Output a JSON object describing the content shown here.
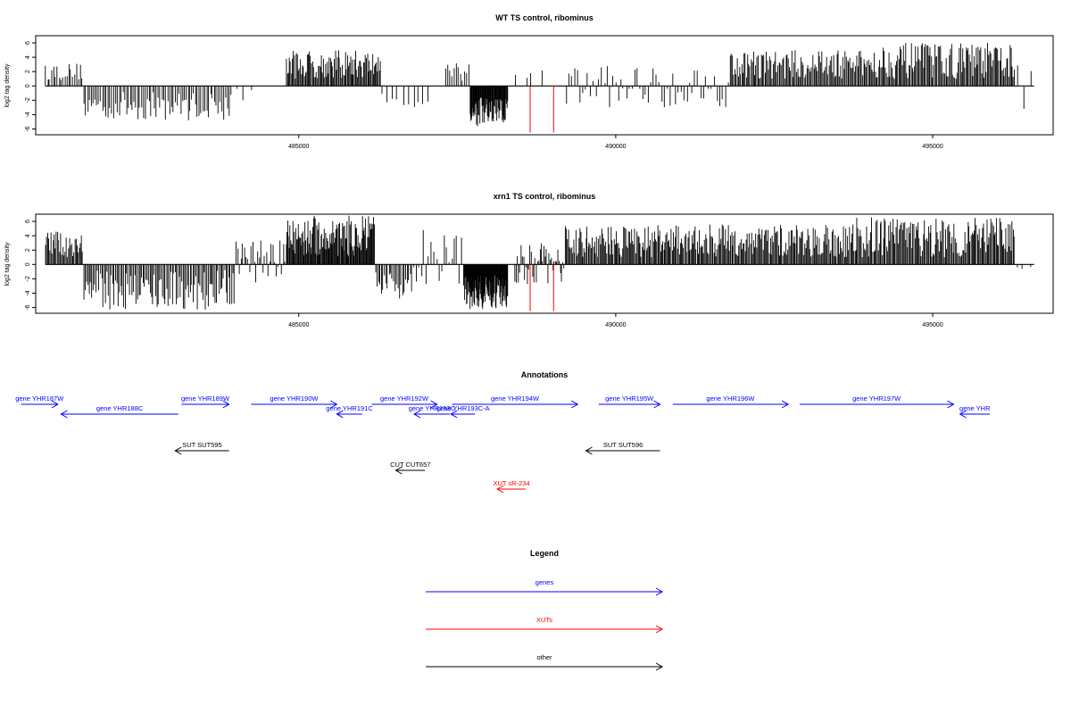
{
  "chart_data": [
    {
      "type": "bar",
      "title": "WT TS control, ribominus",
      "ylabel": "log2 tag density",
      "xlim": [
        480850,
        496900
      ],
      "ylim": [
        -6.8,
        7.0
      ],
      "yticks": [
        -6,
        -4,
        -2,
        0,
        2,
        4,
        6
      ],
      "xticks": [
        485000,
        490000,
        495000
      ],
      "grid": false,
      "series": [
        {
          "color": "#000000",
          "segments": [
            {
              "start": 481000,
              "end": 481600,
              "count": 20,
              "min": 0.8,
              "max": 3.2
            },
            {
              "start": 481600,
              "end": 483950,
              "count": 80,
              "min": -4.8,
              "max": -0.8
            },
            {
              "start": 484000,
              "end": 484300,
              "count": 3,
              "min": -3.0,
              "max": 1.0
            },
            {
              "start": 484800,
              "end": 486300,
              "count": 95,
              "min": 1.0,
              "max": 5.0
            },
            {
              "start": 486300,
              "end": 487100,
              "count": 10,
              "min": -3.0,
              "max": -1.0
            },
            {
              "start": 487300,
              "end": 487700,
              "count": 12,
              "min": 0.5,
              "max": 3.8
            },
            {
              "start": 487700,
              "end": 488300,
              "count": 70,
              "min": -5.8,
              "max": -1.5
            },
            {
              "start": 488400,
              "end": 488900,
              "count": 4,
              "min": 0.5,
              "max": 2.3
            },
            {
              "start": 489200,
              "end": 491800,
              "count": 60,
              "min": -3.0,
              "max": 3.0
            },
            {
              "start": 491800,
              "end": 494000,
              "count": 120,
              "min": 1.0,
              "max": 5.0
            },
            {
              "start": 494000,
              "end": 496300,
              "count": 130,
              "min": 1.0,
              "max": 6.0
            },
            {
              "start": 496300,
              "end": 496600,
              "count": 3,
              "min": -3.5,
              "max": 3.5
            }
          ]
        },
        {
          "color": "#ff0000",
          "bars": [
            {
              "x": 488650,
              "y": -6.5
            },
            {
              "x": 489020,
              "y": -6.5
            }
          ]
        }
      ]
    },
    {
      "type": "bar",
      "title": "xrn1 TS control, ribominus",
      "ylabel": "log2 tag density",
      "xlim": [
        480850,
        496900
      ],
      "ylim": [
        -6.8,
        7.0
      ],
      "yticks": [
        -6,
        -4,
        -2,
        0,
        2,
        4,
        6
      ],
      "xticks": [
        485000,
        490000,
        495000
      ],
      "grid": false,
      "series": [
        {
          "color": "#000000",
          "segments": [
            {
              "start": 481000,
              "end": 481600,
              "count": 35,
              "min": 1.0,
              "max": 4.6
            },
            {
              "start": 481600,
              "end": 484000,
              "count": 110,
              "min": -6.3,
              "max": -0.8
            },
            {
              "start": 484000,
              "end": 484800,
              "count": 30,
              "min": -2.5,
              "max": 3.5
            },
            {
              "start": 484800,
              "end": 486200,
              "count": 120,
              "min": 1.0,
              "max": 6.8
            },
            {
              "start": 486200,
              "end": 486800,
              "count": 25,
              "min": -4.8,
              "max": -1.0
            },
            {
              "start": 486800,
              "end": 487600,
              "count": 20,
              "min": -3.0,
              "max": 5.0
            },
            {
              "start": 487600,
              "end": 488300,
              "count": 110,
              "min": -6.3,
              "max": -1.5
            },
            {
              "start": 488400,
              "end": 489200,
              "count": 40,
              "min": -3.0,
              "max": 3.0
            },
            {
              "start": 489200,
              "end": 491000,
              "count": 110,
              "min": 1.0,
              "max": 5.5
            },
            {
              "start": 491000,
              "end": 493800,
              "count": 170,
              "min": 1.0,
              "max": 5.6
            },
            {
              "start": 493800,
              "end": 496300,
              "count": 150,
              "min": 1.0,
              "max": 6.6
            },
            {
              "start": 496300,
              "end": 496600,
              "count": 3,
              "min": -5.0,
              "max": 3.0
            }
          ]
        },
        {
          "color": "#ff0000",
          "bars": [
            {
              "x": 488650,
              "y": -6.5
            },
            {
              "x": 489020,
              "y": -6.5
            }
          ]
        }
      ]
    }
  ],
  "annotations": {
    "title": "Annotations",
    "features": [
      {
        "label": "gene YHR187W",
        "kind": "gene",
        "strand": "+",
        "row": 0,
        "start": 480620,
        "end": 481200
      },
      {
        "label": "gene YHR188C",
        "kind": "gene",
        "strand": "-",
        "row": 1,
        "start": 481250,
        "end": 483100
      },
      {
        "label": "gene YHR189W",
        "kind": "gene",
        "strand": "+",
        "row": 0,
        "start": 483150,
        "end": 483900
      },
      {
        "label": "gene YHR190W",
        "kind": "gene",
        "strand": "+",
        "row": 0,
        "start": 484250,
        "end": 485600
      },
      {
        "label": "gene YHR191C",
        "kind": "gene",
        "strand": "-",
        "row": 1,
        "start": 485600,
        "end": 486000
      },
      {
        "label": "gene YHR192W",
        "kind": "gene",
        "strand": "+",
        "row": 0,
        "start": 486150,
        "end": 487180
      },
      {
        "label": "gene YHR193C",
        "kind": "gene",
        "strand": "-",
        "row": 1,
        "start": 486820,
        "end": 487380
      },
      {
        "label": "gene YHR193C-A",
        "kind": "gene",
        "strand": "-",
        "row": 1,
        "start": 487400,
        "end": 487780
      },
      {
        "label": "gene YHR194W",
        "kind": "gene",
        "strand": "+",
        "row": 0,
        "start": 487420,
        "end": 489400
      },
      {
        "label": "gene YHR195W",
        "kind": "gene",
        "strand": "+",
        "row": 0,
        "start": 489730,
        "end": 490700
      },
      {
        "label": "gene YHR196W",
        "kind": "gene",
        "strand": "+",
        "row": 0,
        "start": 490900,
        "end": 492720
      },
      {
        "label": "gene YHR197W",
        "kind": "gene",
        "strand": "+",
        "row": 0,
        "start": 492900,
        "end": 495330
      },
      {
        "label": "gene YHR",
        "kind": "gene",
        "strand": "-",
        "row": 1,
        "start": 495430,
        "end": 495900
      },
      {
        "label": "SUT SUT595",
        "kind": "other",
        "strand": "-",
        "row": 2,
        "start": 483050,
        "end": 483900
      },
      {
        "label": "SUT SUT596",
        "kind": "other",
        "strand": "-",
        "row": 2,
        "start": 489530,
        "end": 490700
      },
      {
        "label": "CUT CUT657",
        "kind": "other",
        "strand": "-",
        "row": 3,
        "start": 486530,
        "end": 486990
      },
      {
        "label": "XUT sR-234",
        "kind": "xut",
        "strand": "-",
        "row": 4,
        "start": 488130,
        "end": 488580
      }
    ]
  },
  "legend": {
    "title": "Legend",
    "items": [
      {
        "label": "genes",
        "kind": "gene"
      },
      {
        "label": "XUTs",
        "kind": "xut"
      },
      {
        "label": "other",
        "kind": "other"
      }
    ]
  },
  "colors": {
    "gene": "#0000ff",
    "xut": "#ff0000",
    "other": "#000000",
    "axis": "#000000"
  }
}
